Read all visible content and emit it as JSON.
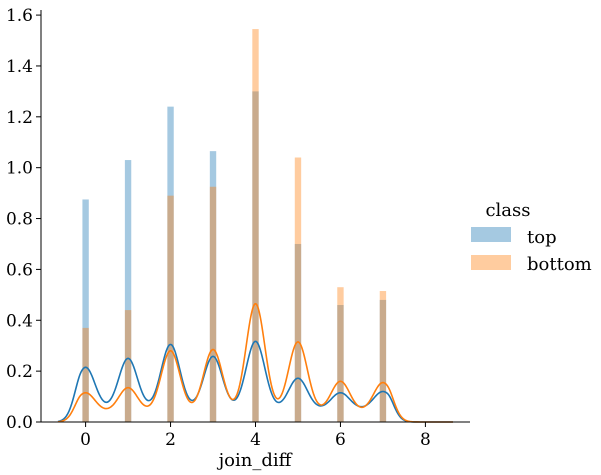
{
  "chart_data": {
    "type": "bar",
    "xlabel": "join_diff",
    "ylabel": "",
    "xlim": [
      -1.05,
      9.05
    ],
    "ylim": [
      0,
      1.62
    ],
    "xticks": [
      0,
      2,
      4,
      6,
      8
    ],
    "yticks": [
      0.0,
      0.2,
      0.4,
      0.6,
      0.8,
      1.0,
      1.2,
      1.4,
      1.6
    ],
    "grid": false,
    "legend": {
      "title": "class",
      "placement": "right",
      "items": [
        "top",
        "bottom"
      ]
    },
    "bar_width": 0.15,
    "histogram": [
      {
        "name": "top",
        "color": "#1f77b4",
        "x": [
          0,
          1,
          2,
          3,
          4,
          5,
          6,
          7
        ],
        "values": [
          0.875,
          1.03,
          1.24,
          1.065,
          1.3,
          0.7,
          0.46,
          0.48
        ]
      },
      {
        "name": "bottom",
        "color": "#ff7f0e",
        "x": [
          0,
          1,
          2,
          3,
          4,
          5,
          6,
          7
        ],
        "values": [
          0.37,
          0.44,
          0.89,
          0.925,
          1.545,
          1.04,
          0.53,
          0.515
        ]
      }
    ],
    "kde": [
      {
        "name": "top",
        "color": "#1f77b4",
        "peaks": [
          0.215,
          0.25,
          0.305,
          0.258,
          0.317,
          0.172,
          0.115,
          0.12
        ],
        "trough": 0.05
      },
      {
        "name": "bottom",
        "color": "#ff7f0e",
        "peaks": [
          0.115,
          0.135,
          0.28,
          0.285,
          0.465,
          0.315,
          0.16,
          0.155
        ],
        "trough": 0.04
      }
    ]
  }
}
